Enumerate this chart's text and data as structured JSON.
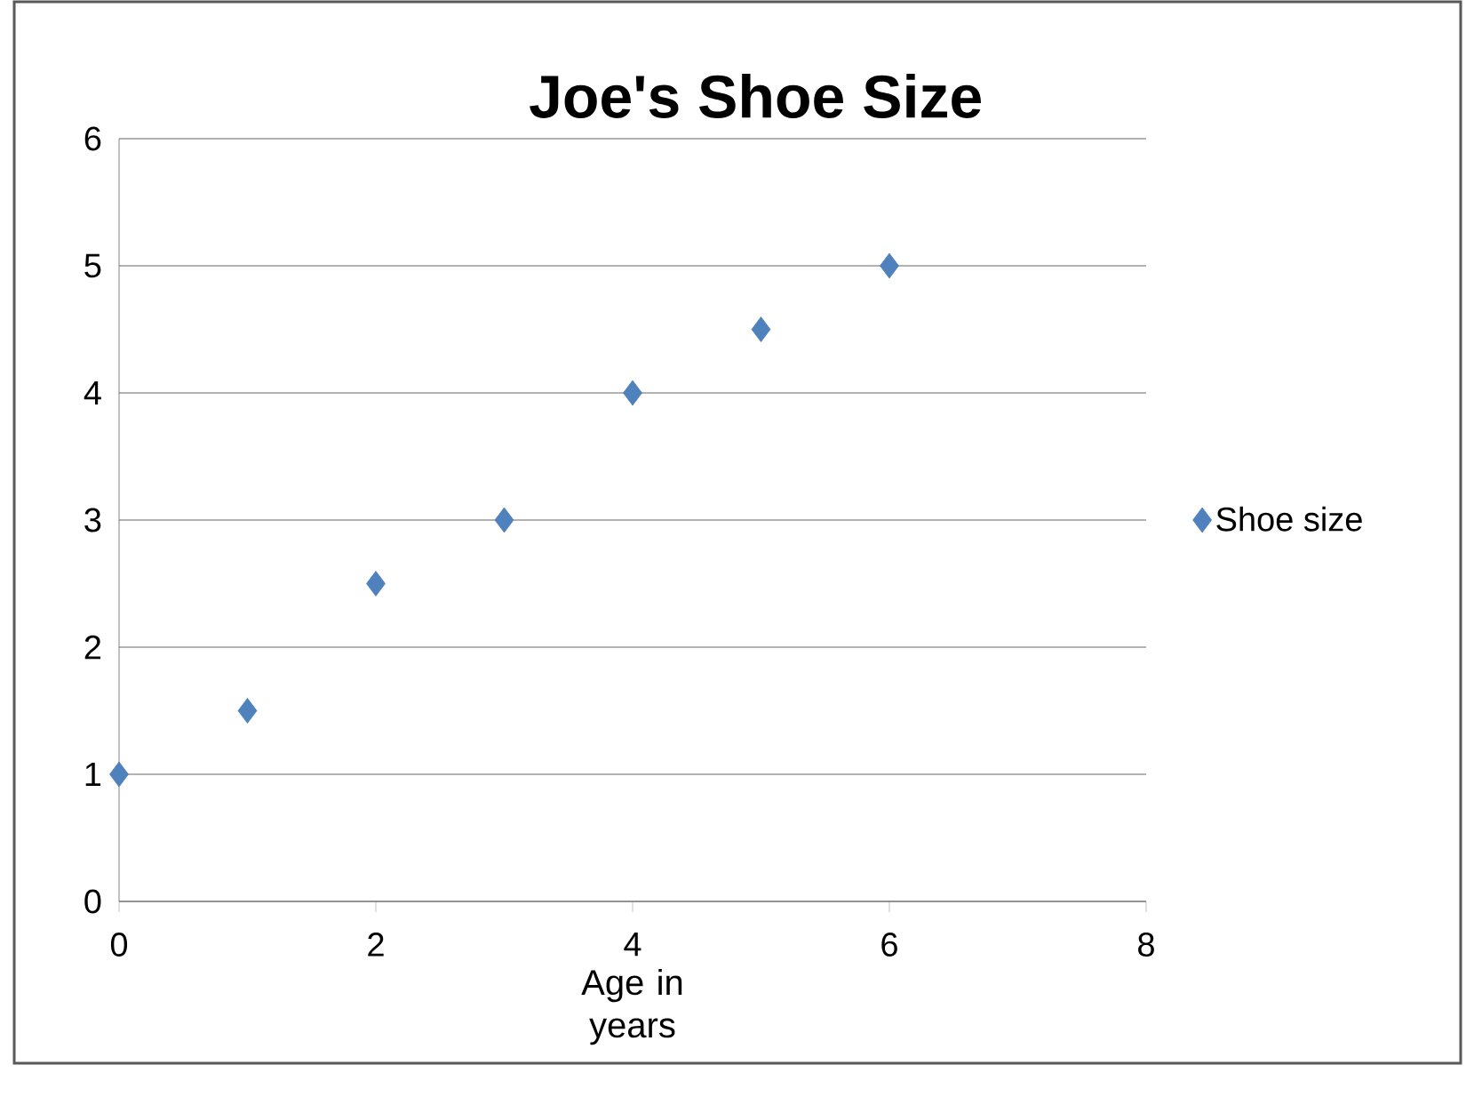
{
  "chart_data": {
    "type": "scatter",
    "title": "Joe's Shoe Size",
    "xlabel": "Age in years",
    "x": [
      0,
      1,
      2,
      3,
      4,
      5,
      6
    ],
    "series": [
      {
        "name": "Shoe size",
        "color": "#4f81bd",
        "values": [
          1,
          1.5,
          2.5,
          3,
          4,
          4.5,
          5
        ]
      }
    ],
    "xlim": [
      0,
      8
    ],
    "xticks": [
      0,
      2,
      4,
      6,
      8
    ],
    "ylim": [
      0,
      6
    ],
    "yticks": [
      0,
      1,
      2,
      3,
      4,
      5,
      6
    ],
    "grid": "y",
    "legend": "right",
    "marker": "diamond"
  }
}
